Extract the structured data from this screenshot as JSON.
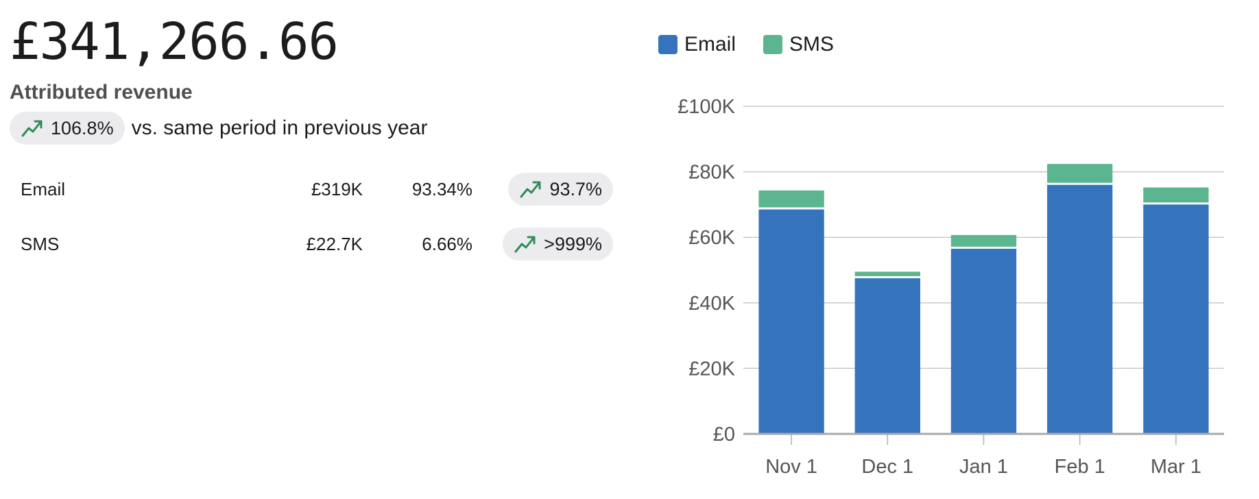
{
  "summary": {
    "total_revenue": "£341,266.66",
    "label": "Attributed revenue",
    "change": "106.8%",
    "comparison_text": "vs. same period in previous year"
  },
  "channels": [
    {
      "name": "Email",
      "revenue": "£319K",
      "share": "93.34%",
      "change": "93.7%"
    },
    {
      "name": "SMS",
      "revenue": "£22.7K",
      "share": "6.66%",
      "change": ">999%"
    }
  ],
  "colors": {
    "email": "#3574bc",
    "sms": "#5bb68f",
    "trend_up": "#2e8b57",
    "pill_bg": "#ececef",
    "grid": "#c8c8c8"
  },
  "icons": {
    "trend": "trend-up-icon"
  },
  "chart_data": {
    "type": "bar",
    "stacked": true,
    "title": "",
    "xlabel": "",
    "ylabel": "",
    "categories": [
      "Nov 1",
      "Dec 1",
      "Jan 1",
      "Feb 1",
      "Mar 1"
    ],
    "series": [
      {
        "name": "Email",
        "values": [
          68500,
          47500,
          56500,
          76000,
          70000
        ]
      },
      {
        "name": "SMS",
        "values": [
          5800,
          2000,
          4200,
          6400,
          5200
        ]
      }
    ],
    "ylim": [
      0,
      100000
    ],
    "yticks": [
      0,
      20000,
      40000,
      60000,
      80000,
      100000
    ],
    "ytick_labels": [
      "£0",
      "£20K",
      "£40K",
      "£60K",
      "£80K",
      "£100K"
    ],
    "grid": true,
    "legend": "top-left"
  }
}
